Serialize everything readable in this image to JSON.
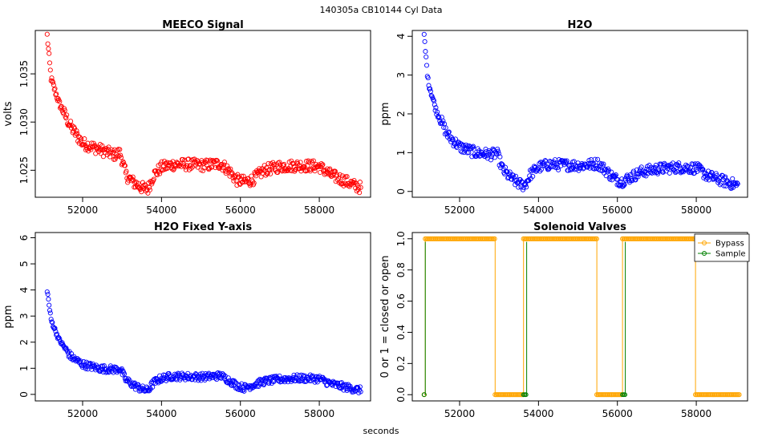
{
  "figure": {
    "suptitle": "140305a    CB10144   Cyl Data",
    "xlabel": "seconds"
  },
  "chart_data": [
    {
      "type": "scatter",
      "title": "MEECO Signal",
      "xlabel": "",
      "ylabel": "volts",
      "xlim": [
        50800,
        59300
      ],
      "ylim": [
        1.0222,
        1.0395
      ],
      "xticks": [
        52000,
        54000,
        56000,
        58000
      ],
      "xtick_labels": [
        "52000",
        "54000",
        "56000",
        "58000"
      ],
      "yticks": [
        1.025,
        1.03,
        1.035
      ],
      "ytick_labels": [
        "1.025",
        "1.030",
        "1.035"
      ],
      "series": [
        {
          "name": "MEECO",
          "color": "#ff0000",
          "x": [
            51100,
            51200,
            51400,
            51700,
            52000,
            52400,
            52800,
            52950,
            53100,
            53300,
            53500,
            53650,
            53800,
            54000,
            54300,
            54700,
            55100,
            55500,
            55700,
            55900,
            56100,
            56300,
            56600,
            57000,
            57500,
            58000,
            58300,
            58600,
            58900,
            59050
          ],
          "y_mean": [
            1.039,
            1.0345,
            1.032,
            1.0295,
            1.0278,
            1.0272,
            1.0266,
            1.0268,
            1.0245,
            1.0237,
            1.0232,
            1.023,
            1.0245,
            1.0253,
            1.0256,
            1.0256,
            1.0255,
            1.0257,
            1.025,
            1.024,
            1.0238,
            1.024,
            1.025,
            1.0254,
            1.0255,
            1.0254,
            1.0245,
            1.024,
            1.0234,
            1.0232
          ],
          "spread": 0.0006
        }
      ]
    },
    {
      "type": "scatter",
      "title": "H2O",
      "xlabel": "",
      "ylabel": "ppm",
      "xlim": [
        50800,
        59300
      ],
      "ylim": [
        -0.15,
        4.15
      ],
      "xticks": [
        52000,
        54000,
        56000,
        58000
      ],
      "xtick_labels": [
        "52000",
        "54000",
        "56000",
        "58000"
      ],
      "yticks": [
        0,
        1,
        2,
        3,
        4
      ],
      "ytick_labels": [
        "0",
        "1",
        "2",
        "3",
        "4"
      ],
      "series": [
        {
          "name": "H2O",
          "color": "#0000ff",
          "x": [
            51100,
            51200,
            51400,
            51700,
            52000,
            52400,
            52800,
            52950,
            53100,
            53300,
            53500,
            53650,
            53800,
            54000,
            54300,
            54700,
            55100,
            55500,
            55700,
            55900,
            56100,
            56300,
            56600,
            57000,
            57500,
            58000,
            58300,
            58600,
            58900,
            59050
          ],
          "y_mean": [
            4.0,
            2.85,
            2.1,
            1.45,
            1.15,
            1.0,
            0.95,
            0.98,
            0.55,
            0.35,
            0.2,
            0.15,
            0.45,
            0.62,
            0.7,
            0.68,
            0.67,
            0.72,
            0.55,
            0.35,
            0.25,
            0.35,
            0.5,
            0.58,
            0.62,
            0.6,
            0.4,
            0.3,
            0.2,
            0.15
          ],
          "spread": 0.14
        }
      ]
    },
    {
      "type": "scatter",
      "title": "H2O Fixed Y-axis",
      "xlabel": "",
      "ylabel": "ppm",
      "xlim": [
        50800,
        59300
      ],
      "ylim": [
        -0.25,
        6.2
      ],
      "xticks": [
        52000,
        54000,
        56000,
        58000
      ],
      "xtick_labels": [
        "52000",
        "54000",
        "56000",
        "58000"
      ],
      "yticks": [
        0,
        1,
        2,
        3,
        4,
        5,
        6
      ],
      "ytick_labels": [
        "0",
        "1",
        "2",
        "3",
        "4",
        "5",
        "6"
      ],
      "series": [
        {
          "name": "H2O",
          "color": "#0000ff",
          "x": [
            51100,
            51200,
            51400,
            51700,
            52000,
            52400,
            52800,
            52950,
            53100,
            53300,
            53500,
            53650,
            53800,
            54000,
            54300,
            54700,
            55100,
            55500,
            55700,
            55900,
            56100,
            56300,
            56600,
            57000,
            57500,
            58000,
            58300,
            58600,
            58900,
            59050
          ],
          "y_mean": [
            4.0,
            2.85,
            2.1,
            1.45,
            1.15,
            1.0,
            0.95,
            0.98,
            0.55,
            0.35,
            0.2,
            0.15,
            0.45,
            0.62,
            0.7,
            0.68,
            0.67,
            0.72,
            0.55,
            0.35,
            0.25,
            0.35,
            0.5,
            0.58,
            0.62,
            0.6,
            0.4,
            0.3,
            0.2,
            0.15
          ],
          "spread": 0.14
        }
      ]
    },
    {
      "type": "line",
      "title": "Solenoid Valves",
      "xlabel": "",
      "ylabel": "0 or 1 = closed or open",
      "xlim": [
        50800,
        59300
      ],
      "ylim": [
        -0.04,
        1.04
      ],
      "xticks": [
        52000,
        54000,
        56000,
        58000
      ],
      "xtick_labels": [
        "52000",
        "54000",
        "56000",
        "58000"
      ],
      "yticks": [
        0,
        0.2,
        0.4,
        0.6,
        0.8,
        1
      ],
      "ytick_labels": [
        "0.0",
        "0.2",
        "0.4",
        "0.6",
        "0.8",
        "1.0"
      ],
      "legend": {
        "position": "top-right",
        "entries": [
          "Bypass",
          "Sample"
        ]
      },
      "series": [
        {
          "name": "Bypass",
          "color": "#ffa500",
          "segments": [
            [
              51100,
              51130,
              0
            ],
            [
              51130,
              52900,
              1
            ],
            [
              52900,
              53620,
              0
            ],
            [
              53620,
              55480,
              1
            ],
            [
              55480,
              56130,
              0
            ],
            [
              56130,
              57980,
              1
            ],
            [
              57980,
              59100,
              0
            ]
          ]
        },
        {
          "name": "Sample",
          "color": "#008000",
          "segments": [
            [
              51100,
              51130,
              0
            ],
            [
              53620,
              53700,
              0
            ],
            [
              56130,
              56200,
              0
            ]
          ],
          "spikes": [
            51130,
            53700,
            56200
          ]
        }
      ]
    }
  ]
}
